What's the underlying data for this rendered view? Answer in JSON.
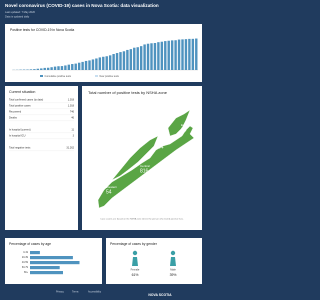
{
  "header": {
    "title": "Novel coronavirus (COVID-19) cases in Nova Scotia: data visualization",
    "updated": "Last updated: 7 May 2020",
    "note": "Data is updated daily"
  },
  "positive_tests": {
    "title": "Positive tests for COVID-19 in Nova Scotia",
    "values": [
      5,
      7,
      12,
      14,
      15,
      21,
      28,
      41,
      51,
      68,
      73,
      90,
      110,
      122,
      127,
      147,
      173,
      193,
      207,
      236,
      262,
      293,
      310,
      342,
      373,
      407,
      428,
      445,
      474,
      517,
      549,
      579,
      606,
      649,
      675,
      721,
      737,
      772,
      827,
      850,
      865,
      873,
      900,
      915,
      935,
      947,
      959,
      963,
      985,
      991,
      998,
      1007,
      1008,
      1018
    ],
    "ylim": [
      0,
      1100
    ],
    "color": "#4f93bf",
    "legend": [
      "Cumulative positive tests",
      "New positive tests"
    ],
    "legend_colors": [
      "#4f93bf",
      "#c9dff0"
    ]
  },
  "current_situation": {
    "title": "Current situation",
    "rows": [
      [
        "Total confirmed cases (to date)",
        "1,018"
      ],
      [
        "Total positive cases",
        "1,018"
      ],
      [
        "Recovered",
        "746"
      ],
      [
        "Deaths",
        "46"
      ],
      [
        "In hospital (current)",
        "11"
      ],
      [
        "In hospital ICU",
        "3"
      ],
      [
        "Total negative tests",
        "31,262"
      ]
    ]
  },
  "zones": {
    "title": "Total number of positive tests by NSHA zone",
    "items": [
      {
        "name": "Western",
        "value": 54
      },
      {
        "name": "Northern",
        "value": 64
      },
      {
        "name": "Central",
        "value": 816
      },
      {
        "name": "Eastern",
        "value": 84
      }
    ],
    "note": "Case counts are based on the NSHA zone where the person who tested positive lives."
  },
  "age": {
    "title": "Percentage of cases by age",
    "categories": [
      "0-19",
      "20-39",
      "40-59",
      "60-79",
      "80+"
    ],
    "values": [
      6,
      26,
      30,
      18,
      20
    ],
    "xlim": [
      0,
      40
    ],
    "color": "#4f93bf"
  },
  "gender": {
    "title": "Percentage of cases by gender",
    "items": [
      {
        "name": "Female",
        "value": 61,
        "value_label": "61%"
      },
      {
        "name": "Male",
        "value": 39,
        "value_label": "39%"
      }
    ],
    "color": "#3a9fa6"
  },
  "footer": {
    "links": [
      "Privacy",
      "Terms",
      "Accessibility"
    ],
    "logo": "NOVA SCOTIA"
  }
}
